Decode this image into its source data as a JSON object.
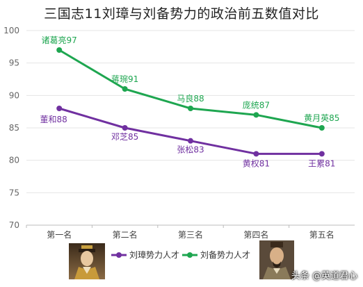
{
  "chart_data": {
    "type": "line",
    "title": "三国志11刘璋与刘备势力的政治前五数值对比",
    "categories": [
      "第一名",
      "第二名",
      "第三名",
      "第四名",
      "第五名"
    ],
    "ylim": [
      70,
      100
    ],
    "yticks": [
      70,
      75,
      80,
      85,
      90,
      95,
      100
    ],
    "grid": true,
    "legend_position": "bottom",
    "series": [
      {
        "name": "刘璋势力人才",
        "color": "#7030a0",
        "values": [
          88,
          85,
          83,
          81,
          81
        ],
        "labels": [
          "董和88",
          "邓芝85",
          "张松83",
          "黄权81",
          "王累81"
        ]
      },
      {
        "name": "刘备势力人才",
        "color": "#1ea650",
        "values": [
          97,
          91,
          88,
          87,
          85
        ],
        "labels": [
          "诸葛亮97",
          "蒋琬91",
          "马良88",
          "庞统87",
          "黄月英85"
        ]
      }
    ]
  },
  "watermark": "头条 @英道君心",
  "portraits": [
    "liu-zhang-portrait",
    "liu-bei-portrait"
  ]
}
